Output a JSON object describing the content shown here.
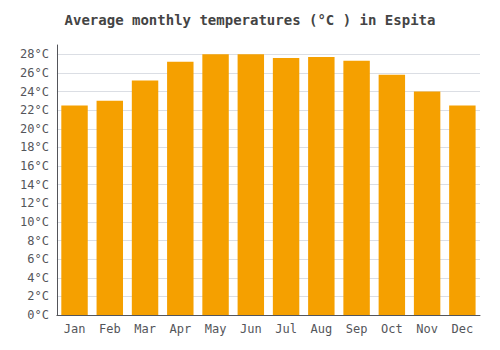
{
  "chart_data": {
    "type": "bar",
    "title": "Average monthly temperatures (°C ) in Espita",
    "categories": [
      "Jan",
      "Feb",
      "Mar",
      "Apr",
      "May",
      "Jun",
      "Jul",
      "Aug",
      "Sep",
      "Oct",
      "Nov",
      "Dec"
    ],
    "values": [
      22.5,
      23.0,
      25.2,
      27.2,
      28.0,
      28.0,
      27.6,
      27.7,
      27.3,
      25.8,
      24.0,
      22.5
    ],
    "color": "#F5A000",
    "ylim": [
      0,
      29
    ],
    "yticks": [
      {
        "value": 0,
        "label": "0°C"
      },
      {
        "value": 2,
        "label": "2°C"
      },
      {
        "value": 4,
        "label": "4°C"
      },
      {
        "value": 6,
        "label": "6°C"
      },
      {
        "value": 8,
        "label": "8°C"
      },
      {
        "value": 10,
        "label": "10°C"
      },
      {
        "value": 12,
        "label": "12°C"
      },
      {
        "value": 14,
        "label": "14°C"
      },
      {
        "value": 16,
        "label": "16°C"
      },
      {
        "value": 18,
        "label": "18°C"
      },
      {
        "value": 20,
        "label": "20°C"
      },
      {
        "value": 22,
        "label": "22°C"
      },
      {
        "value": 24,
        "label": "24°C"
      },
      {
        "value": 26,
        "label": "26°C"
      },
      {
        "value": 28,
        "label": "28°C"
      }
    ],
    "grid": true
  }
}
